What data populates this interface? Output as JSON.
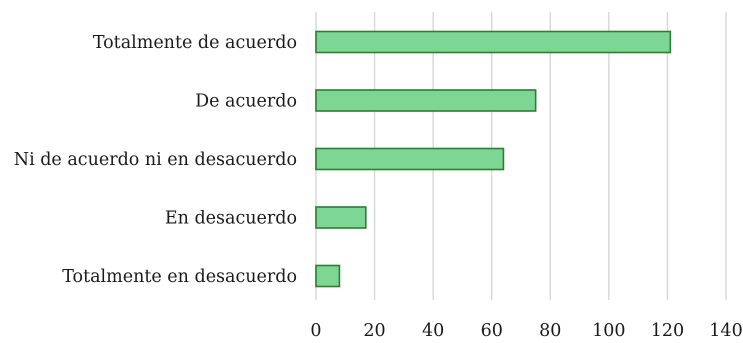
{
  "chart_data": {
    "type": "bar",
    "orientation": "horizontal",
    "title": "",
    "xlabel": "",
    "ylabel": "",
    "categories": [
      "Totalmente de acuerdo",
      "De acuerdo",
      "Ni de acuerdo ni en desacuerdo",
      "En desacuerdo",
      "Totalmente en desacuerdo"
    ],
    "values": [
      121,
      75,
      64,
      17,
      8
    ],
    "xlim": [
      0,
      140
    ],
    "x_ticks": [
      0,
      20,
      40,
      60,
      80,
      100,
      120,
      140
    ],
    "grid": true,
    "legend": "none",
    "colors": {
      "bar_fill": "#7dd694",
      "bar_stroke": "#2e7d32",
      "grid": "#d9d9d9"
    }
  }
}
